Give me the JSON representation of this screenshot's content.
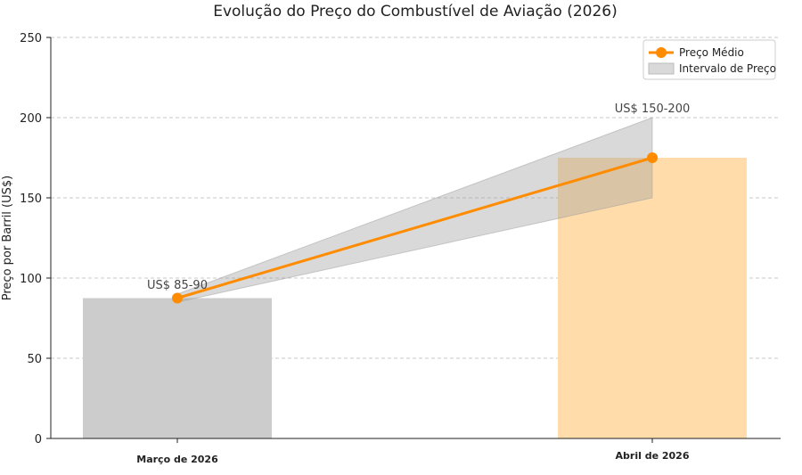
{
  "chart_data": {
    "type": "bar",
    "title": "Evolução do Preço do Combustível de Aviação (2026)",
    "ylabel": "Preço por Barril (US$)",
    "xlabel": "",
    "ylim": [
      0,
      250
    ],
    "yticks": [
      0,
      50,
      100,
      150,
      200,
      250
    ],
    "grid": "horizontal dashed",
    "legend_position": "top-right",
    "categories": [
      "Março de 2026",
      "Abril de 2026"
    ],
    "bars": [
      {
        "category": "Março de 2026",
        "value": 87.5,
        "color": "#cccccc"
      },
      {
        "category": "Abril de 2026",
        "value": 175,
        "color": "#ffdcaa"
      }
    ],
    "series": [
      {
        "name": "Preço Médio",
        "type": "line",
        "color": "#ff8c00",
        "values": [
          87.5,
          175
        ]
      }
    ],
    "range": {
      "name": "Intervalo de Preço",
      "color": "#bbbbbb",
      "low": [
        85,
        150
      ],
      "high": [
        90,
        200
      ]
    },
    "annotations": [
      {
        "category": "Março de 2026",
        "text": "US$ 85-90",
        "y": 90
      },
      {
        "category": "Abril de 2026",
        "text": "US$ 150-200",
        "y": 200
      }
    ],
    "legend": [
      {
        "label": "Preço Médio",
        "kind": "line-marker",
        "color": "#ff8c00"
      },
      {
        "label": "Intervalo de Preço",
        "kind": "patch",
        "color": "#d9d9d9"
      }
    ]
  }
}
